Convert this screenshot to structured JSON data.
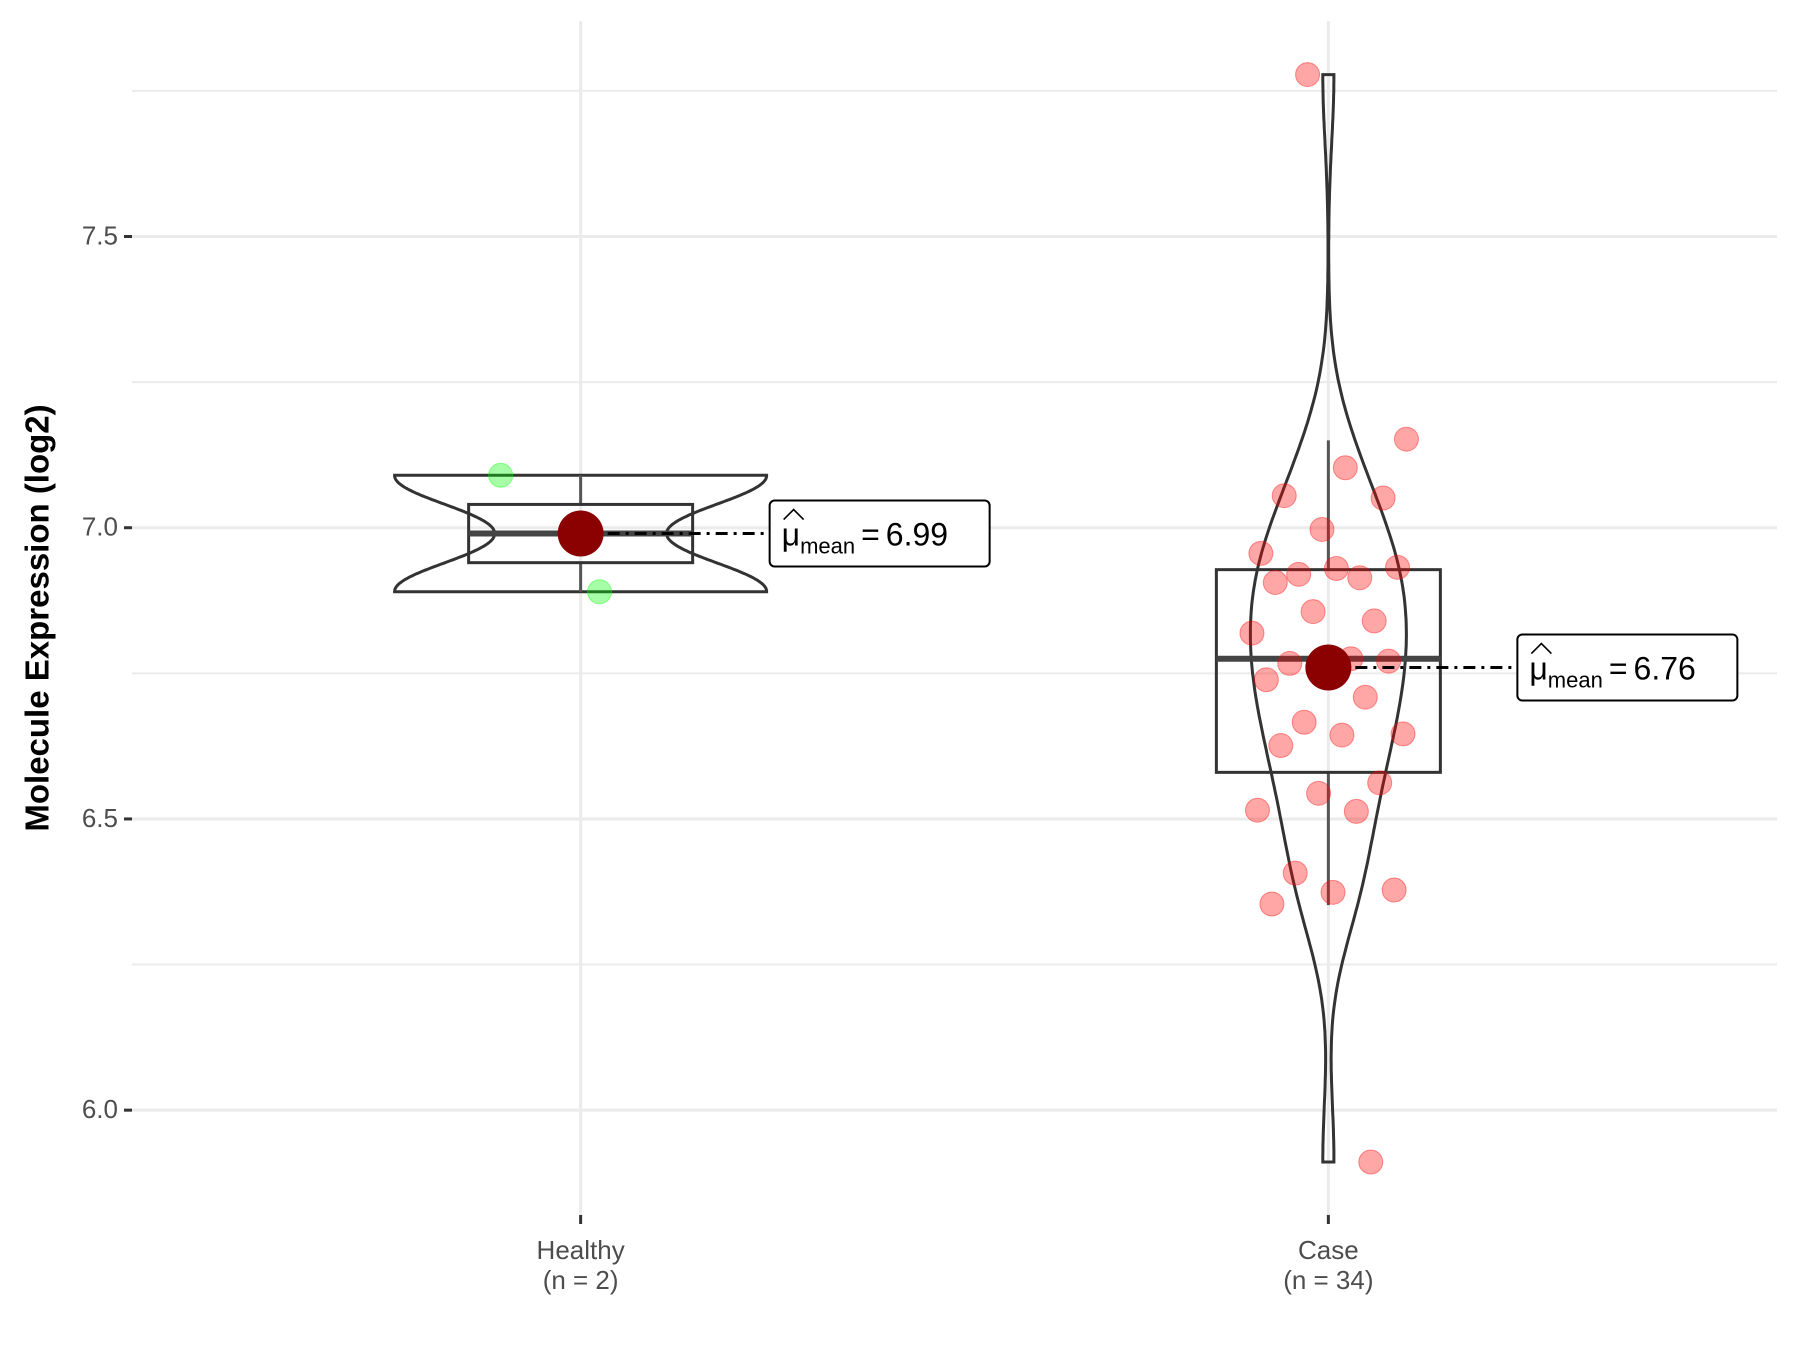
{
  "chart_data": {
    "type": "violin-box",
    "y_label": "Molecule Expression (log2)",
    "ylim": [
      5.82,
      7.87
    ],
    "yticks": [
      {
        "value": 6,
        "label": "6.0"
      },
      {
        "value": 6.5,
        "label": "6.5"
      },
      {
        "value": 7,
        "label": "7.0"
      },
      {
        "value": 7.5,
        "label": "7.5"
      }
    ],
    "minor_yticks": [
      6.25,
      6.75,
      7.25,
      7.75
    ],
    "grid": true,
    "mean_color": "#8b0000",
    "mean_label": {
      "symbol": "μ",
      "subscript": "mean",
      "sign": "="
    },
    "series": [
      {
        "name": "Healthy",
        "n_label": "(n = 2)",
        "color": "#00ff00",
        "values": [
          7.09,
          6.89
        ],
        "q1": 6.94,
        "median": 6.99,
        "q3": 7.04,
        "whisker_low": 6.89,
        "whisker_high": 7.09,
        "mean": 6.99
      },
      {
        "name": "Case",
        "n_label": "(n = 34)",
        "color": "#ff0000",
        "values": [
          7.778,
          7.152,
          7.103,
          7.055,
          7.051,
          6.997,
          6.956,
          6.914,
          6.92,
          6.932,
          6.93,
          6.906,
          6.84,
          6.856,
          6.819,
          6.775,
          6.767,
          6.771,
          6.753,
          6.739,
          6.709,
          6.666,
          6.646,
          6.644,
          6.626,
          6.562,
          6.544,
          6.515,
          6.513,
          6.407,
          6.378,
          6.374,
          6.354,
          5.911
        ],
        "q1": 6.58,
        "median": 6.775,
        "q3": 6.928,
        "whisker_low": 6.352,
        "whisker_high": 7.15,
        "mean": 6.76
      }
    ]
  }
}
